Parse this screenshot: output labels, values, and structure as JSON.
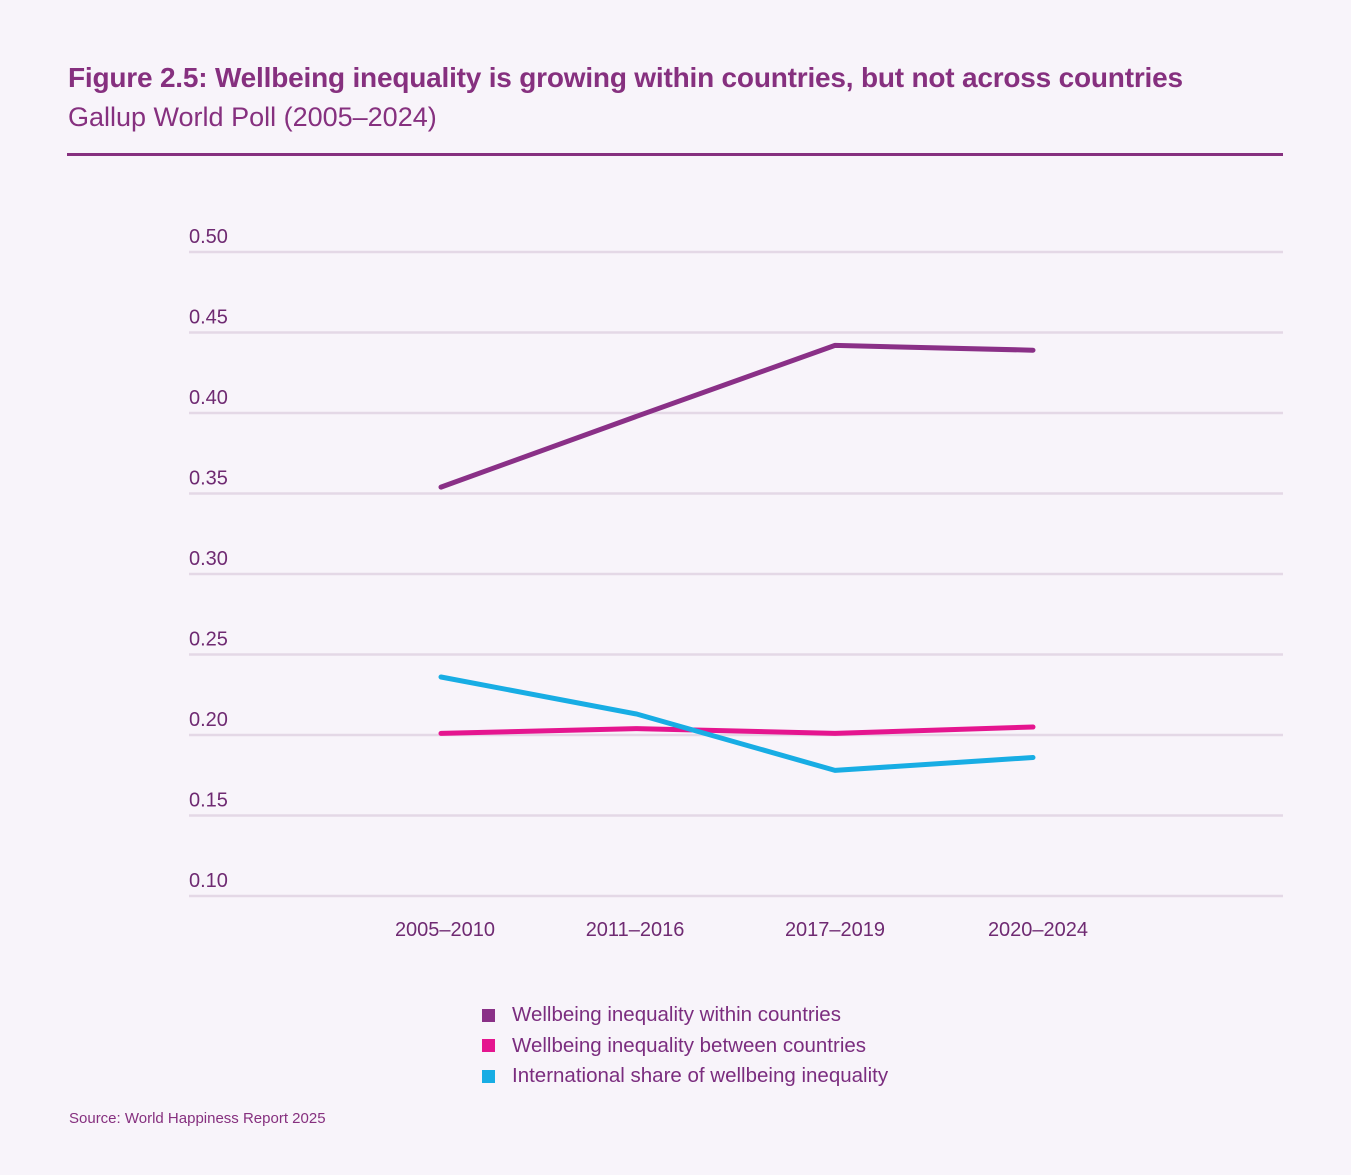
{
  "header": {
    "title": "Figure 2.5: Wellbeing inequality is growing within countries, but not across countries",
    "subtitle": "Gallup World Poll (2005–2024)"
  },
  "footer": {
    "source": "Source: World Happiness Report 2025"
  },
  "colors": {
    "background": "#f8f4fa",
    "accent": "#86307f",
    "gridline": "#e4d8e6",
    "within": "#8a3087",
    "between": "#e5158f",
    "share": "#18ade4"
  },
  "chart_data": {
    "type": "line",
    "title": "Figure 2.5: Wellbeing inequality is growing within countries, but not across countries",
    "subtitle": "Gallup World Poll (2005–2024)",
    "xlabel": "",
    "ylabel": "",
    "categories": [
      "2005–2010",
      "2011–2016",
      "2017–2019",
      "2020–2024"
    ],
    "ylim": [
      0.1,
      0.5
    ],
    "yticks": [
      0.1,
      0.15,
      0.2,
      0.25,
      0.3,
      0.35,
      0.4,
      0.45,
      0.5
    ],
    "ytick_labels": [
      "0.10",
      "0.15",
      "0.20",
      "0.25",
      "0.30",
      "0.35",
      "0.40",
      "0.45",
      "0.50"
    ],
    "grid": true,
    "legend_position": "bottom-center",
    "series": [
      {
        "name": "Wellbeing inequality within countries",
        "color": "#8a3087",
        "values": [
          0.354,
          0.398,
          0.442,
          0.439
        ]
      },
      {
        "name": "Wellbeing inequality between countries",
        "color": "#e5158f",
        "values": [
          0.201,
          0.204,
          0.201,
          0.205
        ]
      },
      {
        "name": "International share of wellbeing inequality",
        "color": "#18ade4",
        "values": [
          0.236,
          0.213,
          0.178,
          0.186
        ]
      }
    ],
    "source": "Source: World Happiness Report 2025"
  }
}
